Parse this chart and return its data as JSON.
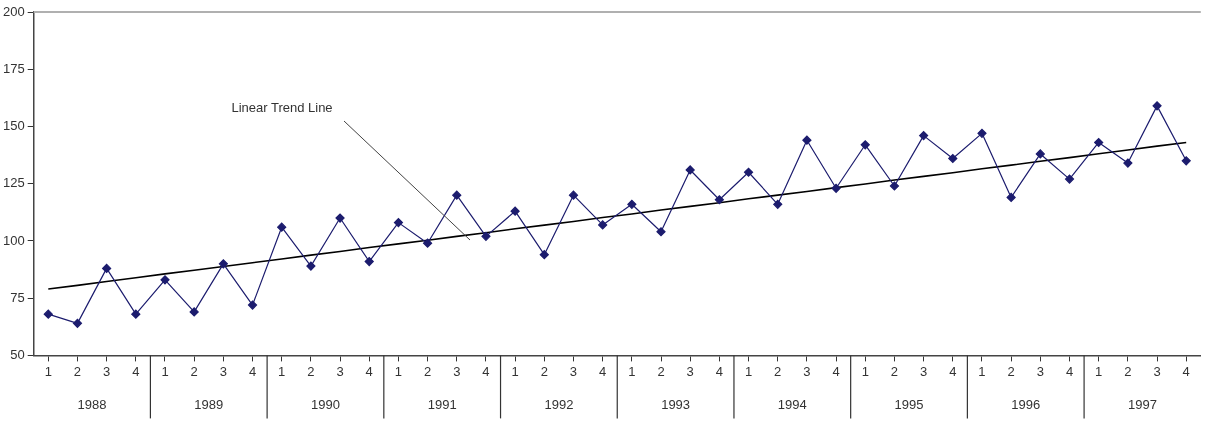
{
  "chart_data": {
    "type": "line",
    "categories": [
      "1",
      "2",
      "3",
      "4",
      "1",
      "2",
      "3",
      "4",
      "1",
      "2",
      "3",
      "4",
      "1",
      "2",
      "3",
      "4",
      "1",
      "2",
      "3",
      "4",
      "1",
      "2",
      "3",
      "4",
      "1",
      "2",
      "3",
      "4",
      "1",
      "2",
      "3",
      "4",
      "1",
      "2",
      "3",
      "4",
      "1",
      "2",
      "3",
      "4"
    ],
    "ylim": [
      50,
      200
    ],
    "yticks": [
      50,
      75,
      100,
      125,
      150,
      175,
      200
    ],
    "grid": false,
    "legend": false,
    "marker": "diamond",
    "series": [
      {
        "color": "#1c1c6e",
        "values": [
          68,
          64,
          88,
          68,
          83,
          69,
          90,
          72,
          106,
          89,
          110,
          91,
          108,
          99,
          120,
          102,
          113,
          94,
          120,
          107,
          116,
          104,
          131,
          118,
          130,
          116,
          144,
          123,
          142,
          124,
          146,
          136,
          147,
          119,
          138,
          127,
          143,
          134,
          159,
          135
        ]
      },
      {
        "type": "line",
        "marker": "none",
        "color": "#000000",
        "values": [
          79.0,
          80.6,
          82.3,
          83.9,
          85.6,
          87.2,
          88.8,
          90.5,
          92.1,
          93.8,
          95.4,
          97.1,
          98.7,
          100.3,
          102.0,
          103.6,
          105.3,
          106.9,
          108.5,
          110.2,
          111.8,
          113.5,
          115.1,
          116.7,
          118.4,
          120.0,
          121.6,
          123.3,
          124.9,
          126.6,
          128.2,
          129.8,
          131.5,
          133.1,
          134.8,
          136.4,
          138.1,
          139.7,
          141.4,
          143.0
        ]
      }
    ],
    "annotations": [
      "Linear Trend Line",
      "1988",
      "1989",
      "1990",
      "1991",
      "1992",
      "1993",
      "1994",
      "1995",
      "1996",
      "1997"
    ]
  }
}
